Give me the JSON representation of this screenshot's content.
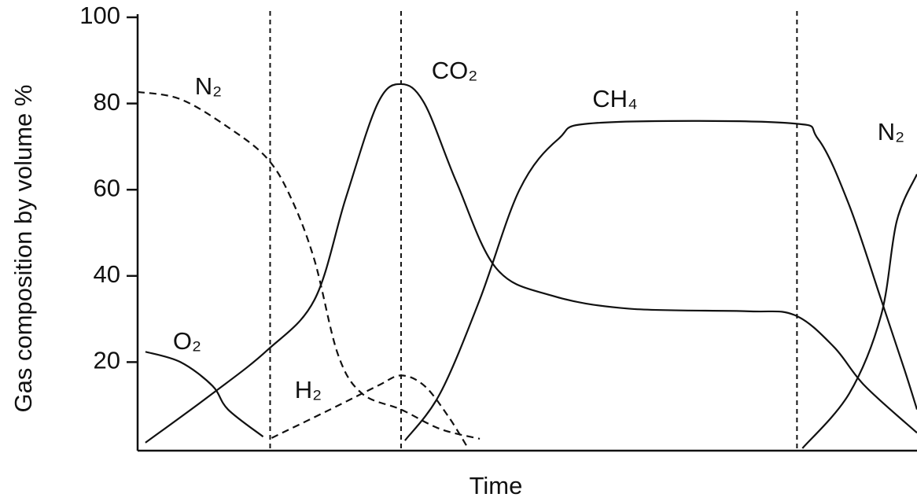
{
  "chart_data": {
    "type": "line",
    "x_label": "Time",
    "y_label": "Gas composition by volume %",
    "xlim": [
      0,
      100
    ],
    "ylim": [
      0,
      100
    ],
    "yticks": [
      20,
      40,
      60,
      80,
      100
    ],
    "phase_lines": [
      17,
      33.8,
      84.6
    ],
    "color": "#111111",
    "series": [
      {
        "name": "O₂",
        "dash": false,
        "x": [
          1,
          5.5,
          9.6,
          11.6,
          16.1
        ],
        "values": [
          22.4,
          20,
          14.5,
          9,
          2.7
        ]
      },
      {
        "name": "N₂",
        "dash": true,
        "x": [
          0,
          5.5,
          11.6,
          16.6,
          19.7,
          22.7,
          25.7,
          28.8,
          33.8,
          38.8,
          43.9
        ],
        "values": [
          82.7,
          81,
          74.5,
          67.3,
          58,
          43.6,
          21.8,
          12.7,
          9,
          4.5,
          2.2
        ]
      },
      {
        "name": "CO₂",
        "dash": false,
        "x": [
          1,
          9.6,
          16.6,
          22.7,
          26.7,
          30.8,
          33.8,
          36.8,
          40.9,
          46,
          53,
          63,
          78.2,
          84.3,
          89.3,
          93.3,
          100
        ],
        "values": [
          1.3,
          12.7,
          22.7,
          34.5,
          58,
          80,
          84.5,
          80,
          61.8,
          41.8,
          35.5,
          32.4,
          31.8,
          30.9,
          23.6,
          14.5,
          3.6
        ]
      },
      {
        "name": "H₂",
        "dash": true,
        "x": [
          17.2,
          24.7,
          30.8,
          33.8,
          36.8,
          39.9,
          42.4
        ],
        "values": [
          2.4,
          9,
          14.5,
          16.9,
          14.5,
          7.3,
          0
        ]
      },
      {
        "name": "CH₄",
        "dash": false,
        "x": [
          34.3,
          38.8,
          43.9,
          49,
          54,
          59,
          83.2,
          87.3,
          91.3,
          95.4,
          98.4,
          100
        ],
        "values": [
          1.8,
          12.7,
          34.5,
          60,
          71.8,
          75.5,
          75.5,
          71.8,
          56.4,
          34.5,
          18.2,
          9
        ]
      },
      {
        "name": "N₂",
        "dash": false,
        "x": [
          85.3,
          91.3,
          95.4,
          97.4,
          100
        ],
        "values": [
          0,
          12.7,
          30.9,
          52.7,
          63.6
        ]
      }
    ]
  }
}
